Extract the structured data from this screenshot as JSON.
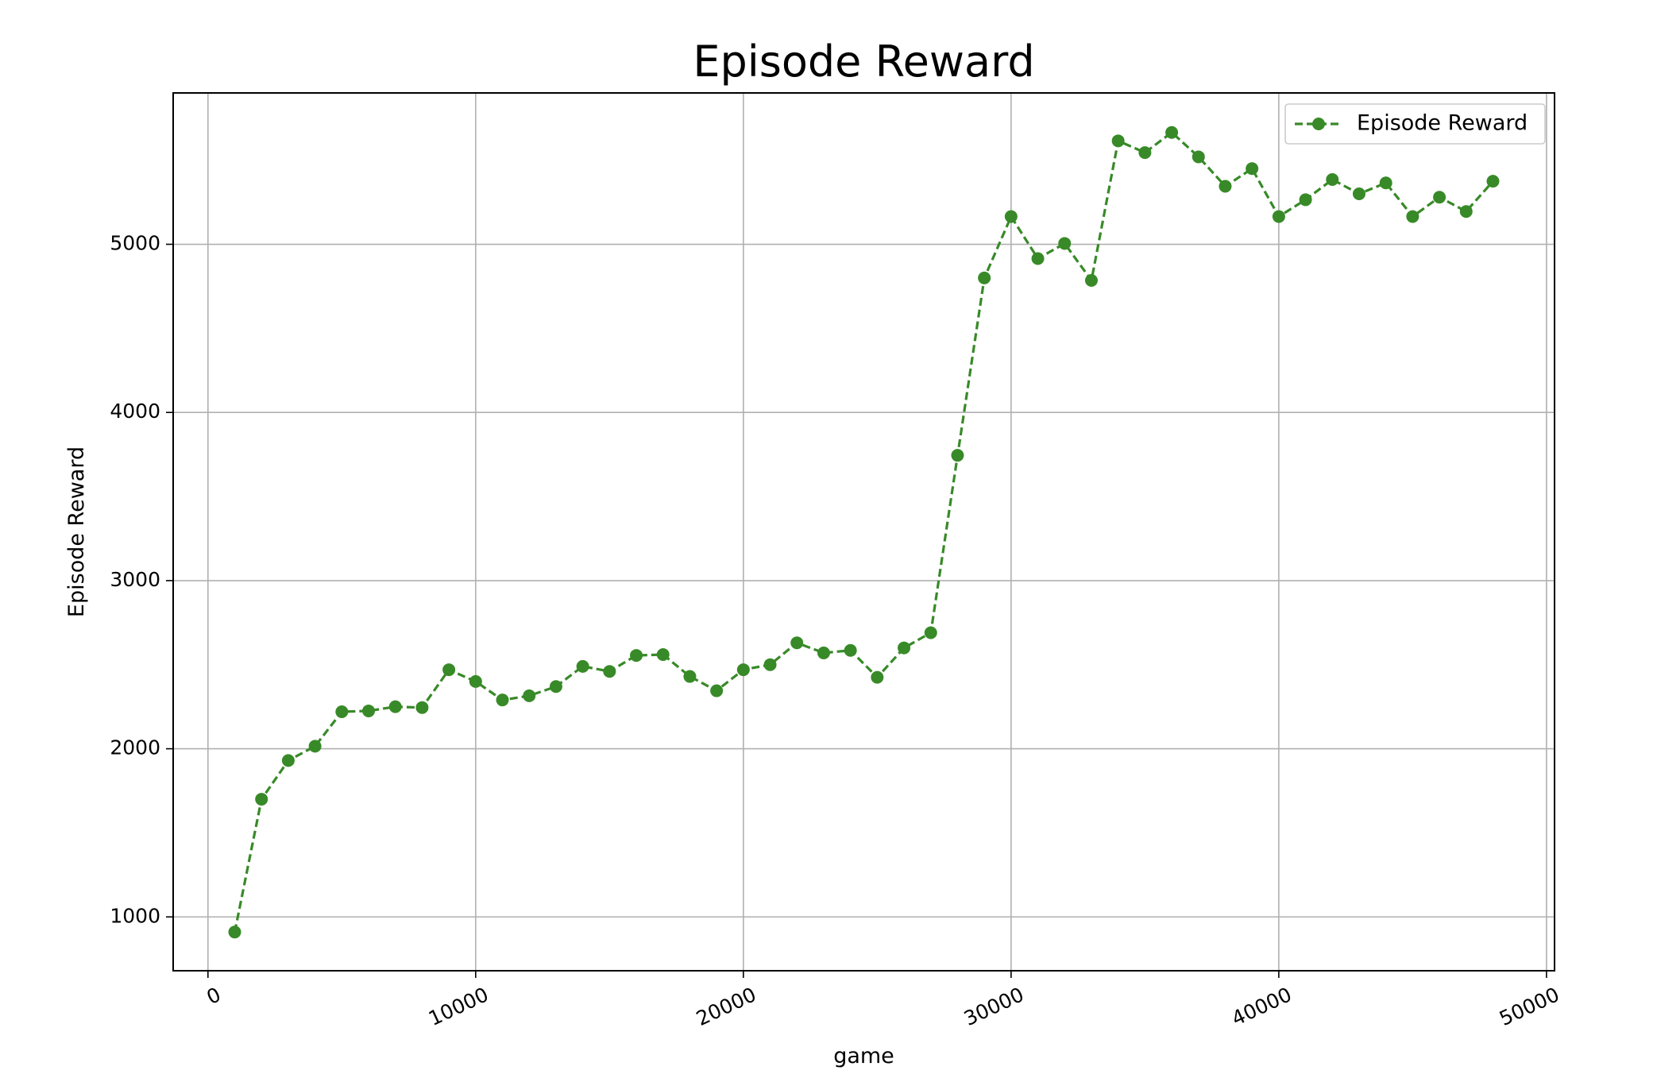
{
  "chart_data": {
    "type": "line",
    "title": "Episode Reward",
    "xlabel": "game",
    "ylabel": "Episode Reward",
    "xlim": [
      -1300,
      50300
    ],
    "ylim": [
      680,
      5900
    ],
    "xticks": [
      0,
      10000,
      20000,
      30000,
      40000,
      50000
    ],
    "yticks": [
      1000,
      2000,
      3000,
      4000,
      5000
    ],
    "x_tick_labels": [
      "0",
      "10000",
      "20000",
      "30000",
      "40000",
      "50000"
    ],
    "y_tick_labels": [
      "1000",
      "2000",
      "3000",
      "4000",
      "5000"
    ],
    "grid": true,
    "legend_position": "top-right",
    "colors": {
      "series": "#388a28",
      "grid": "#b0b0b0",
      "frame": "#000000"
    },
    "series": [
      {
        "name": "Episode Reward",
        "style": "dashed line with circle markers",
        "x": [
          1000,
          2000,
          3000,
          4000,
          5000,
          6000,
          7000,
          8000,
          9000,
          10000,
          11000,
          12000,
          13000,
          14000,
          15000,
          16000,
          17000,
          18000,
          19000,
          20000,
          21000,
          22000,
          23000,
          24000,
          25000,
          26000,
          27000,
          28000,
          29000,
          30000,
          31000,
          32000,
          33000,
          34000,
          35000,
          36000,
          37000,
          38000,
          39000,
          40000,
          41000,
          42000,
          43000,
          44000,
          45000,
          46000,
          47000,
          48000
        ],
        "y": [
          910,
          1700,
          1930,
          2015,
          2220,
          2225,
          2250,
          2245,
          2470,
          2400,
          2290,
          2315,
          2370,
          2490,
          2460,
          2555,
          2560,
          2430,
          2345,
          2470,
          2500,
          2630,
          2570,
          2585,
          2425,
          2600,
          2690,
          3745,
          4800,
          5165,
          4915,
          5005,
          4785,
          5615,
          5545,
          5665,
          5520,
          5345,
          5450,
          5165,
          5265,
          5385,
          5300,
          5365,
          5165,
          5280,
          5195,
          5375
        ]
      }
    ]
  }
}
